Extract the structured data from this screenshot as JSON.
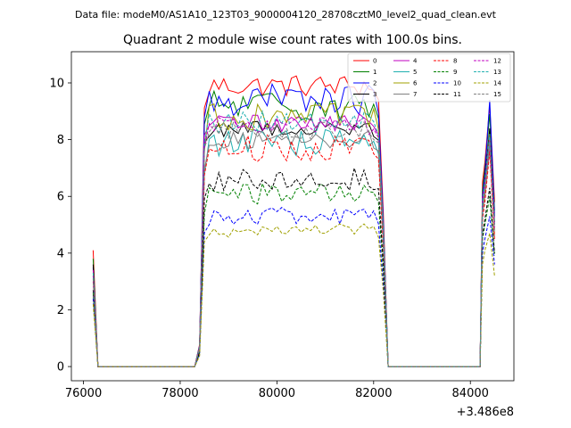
{
  "page": {
    "suptitle": "Data file: modeM0/AS1A10_123T03_9000004120_28708cztM0_level2_quad_clean.evt"
  },
  "chart_data": {
    "type": "line",
    "title": "Quadrant 2 module wise count rates with 100.0s bins.",
    "xlabel": "",
    "ylabel": "",
    "x_offset_label": "+3.486e8",
    "x_offset": 348600000,
    "xlim": [
      75750,
      84900
    ],
    "ylim": [
      -0.5,
      11.1
    ],
    "xticks": [
      76000,
      78000,
      80000,
      82000,
      84000
    ],
    "xtick_labels": [
      "76000",
      "78000",
      "80000",
      "82000",
      "84000"
    ],
    "yticks": [
      0,
      2,
      4,
      6,
      8,
      10
    ],
    "ytick_labels": [
      "0",
      "2",
      "4",
      "6",
      "8",
      "10"
    ],
    "grid": false,
    "legend_placement": "top-right",
    "legend_columns": 4,
    "segments": [
      {
        "x0": 76200,
        "x1": 76300,
        "step": 100
      },
      {
        "x0": 76300,
        "x1": 78300,
        "step": 100
      },
      {
        "x0": 78300,
        "x1": 82200,
        "step": 100
      },
      {
        "x0": 82200,
        "x1": 84200,
        "step": 100
      },
      {
        "x0": 84200,
        "x1": 84500,
        "step": 100
      }
    ],
    "series": [
      {
        "name": "0",
        "color": "#ff0000",
        "dashed": false,
        "start": 4.1,
        "level": 9.9,
        "noise": 0.25,
        "end": [
          6.5,
          7.2,
          9.2,
          5.8
        ]
      },
      {
        "name": "1",
        "color": "#008000",
        "dashed": false,
        "start": 3.8,
        "level": 9.2,
        "noise": 0.35,
        "end": [
          6.2,
          7.0,
          8.9,
          5.5
        ]
      },
      {
        "name": "2",
        "color": "#0000ff",
        "dashed": false,
        "start": 3.5,
        "level": 9.4,
        "noise": 0.35,
        "end": [
          6.0,
          6.8,
          9.4,
          5.3
        ]
      },
      {
        "name": "3",
        "color": "#000000",
        "dashed": false,
        "start": 3.6,
        "level": 8.4,
        "noise": 0.2,
        "end": [
          5.8,
          6.6,
          8.4,
          5.1
        ]
      },
      {
        "name": "4",
        "color": "#c000c0",
        "dashed": false,
        "start": 3.4,
        "level": 8.6,
        "noise": 0.2,
        "end": [
          5.9,
          6.5,
          8.1,
          5.0
        ]
      },
      {
        "name": "5",
        "color": "#20b0b0",
        "dashed": false,
        "start": 3.3,
        "level": 7.9,
        "noise": 0.3,
        "end": [
          5.6,
          6.3,
          7.9,
          4.8
        ]
      },
      {
        "name": "6",
        "color": "#a0a000",
        "dashed": false,
        "start": 3.2,
        "level": 8.8,
        "noise": 0.3,
        "end": [
          5.5,
          6.2,
          8.2,
          4.7
        ]
      },
      {
        "name": "7",
        "color": "#808080",
        "dashed": false,
        "start": 3.1,
        "level": 8.0,
        "noise": 0.2,
        "end": [
          5.4,
          6.0,
          7.7,
          4.6
        ]
      },
      {
        "name": "8",
        "color": "#ff0000",
        "dashed": true,
        "start": 3.0,
        "level": 7.7,
        "noise": 0.3,
        "end": [
          5.2,
          5.8,
          7.6,
          4.5
        ]
      },
      {
        "name": "9",
        "color": "#008000",
        "dashed": true,
        "start": 2.6,
        "level": 6.1,
        "noise": 0.25,
        "end": [
          4.5,
          5.0,
          6.0,
          3.9
        ]
      },
      {
        "name": "10",
        "color": "#0000ff",
        "dashed": true,
        "start": 2.4,
        "level": 5.3,
        "noise": 0.2,
        "end": [
          4.0,
          4.5,
          5.3,
          3.6
        ]
      },
      {
        "name": "11",
        "color": "#000000",
        "dashed": true,
        "start": 2.7,
        "level": 6.6,
        "noise": 0.25,
        "end": [
          4.6,
          5.2,
          6.3,
          4.0
        ]
      },
      {
        "name": "12",
        "color": "#c000c0",
        "dashed": true,
        "start": 3.2,
        "level": 8.5,
        "noise": 0.2,
        "end": [
          5.7,
          6.4,
          8.0,
          4.9
        ]
      },
      {
        "name": "13",
        "color": "#20b0b0",
        "dashed": true,
        "start": 3.3,
        "level": 8.6,
        "noise": 0.25,
        "end": [
          5.8,
          6.5,
          8.2,
          5.0
        ]
      },
      {
        "name": "14",
        "color": "#a0a000",
        "dashed": true,
        "start": 2.2,
        "level": 4.8,
        "noise": 0.15,
        "end": [
          3.6,
          4.1,
          4.7,
          3.2
        ]
      },
      {
        "name": "15",
        "color": "#808080",
        "dashed": true,
        "start": 3.1,
        "level": 8.3,
        "noise": 0.2,
        "end": [
          5.5,
          6.1,
          7.9,
          4.8
        ]
      }
    ]
  }
}
